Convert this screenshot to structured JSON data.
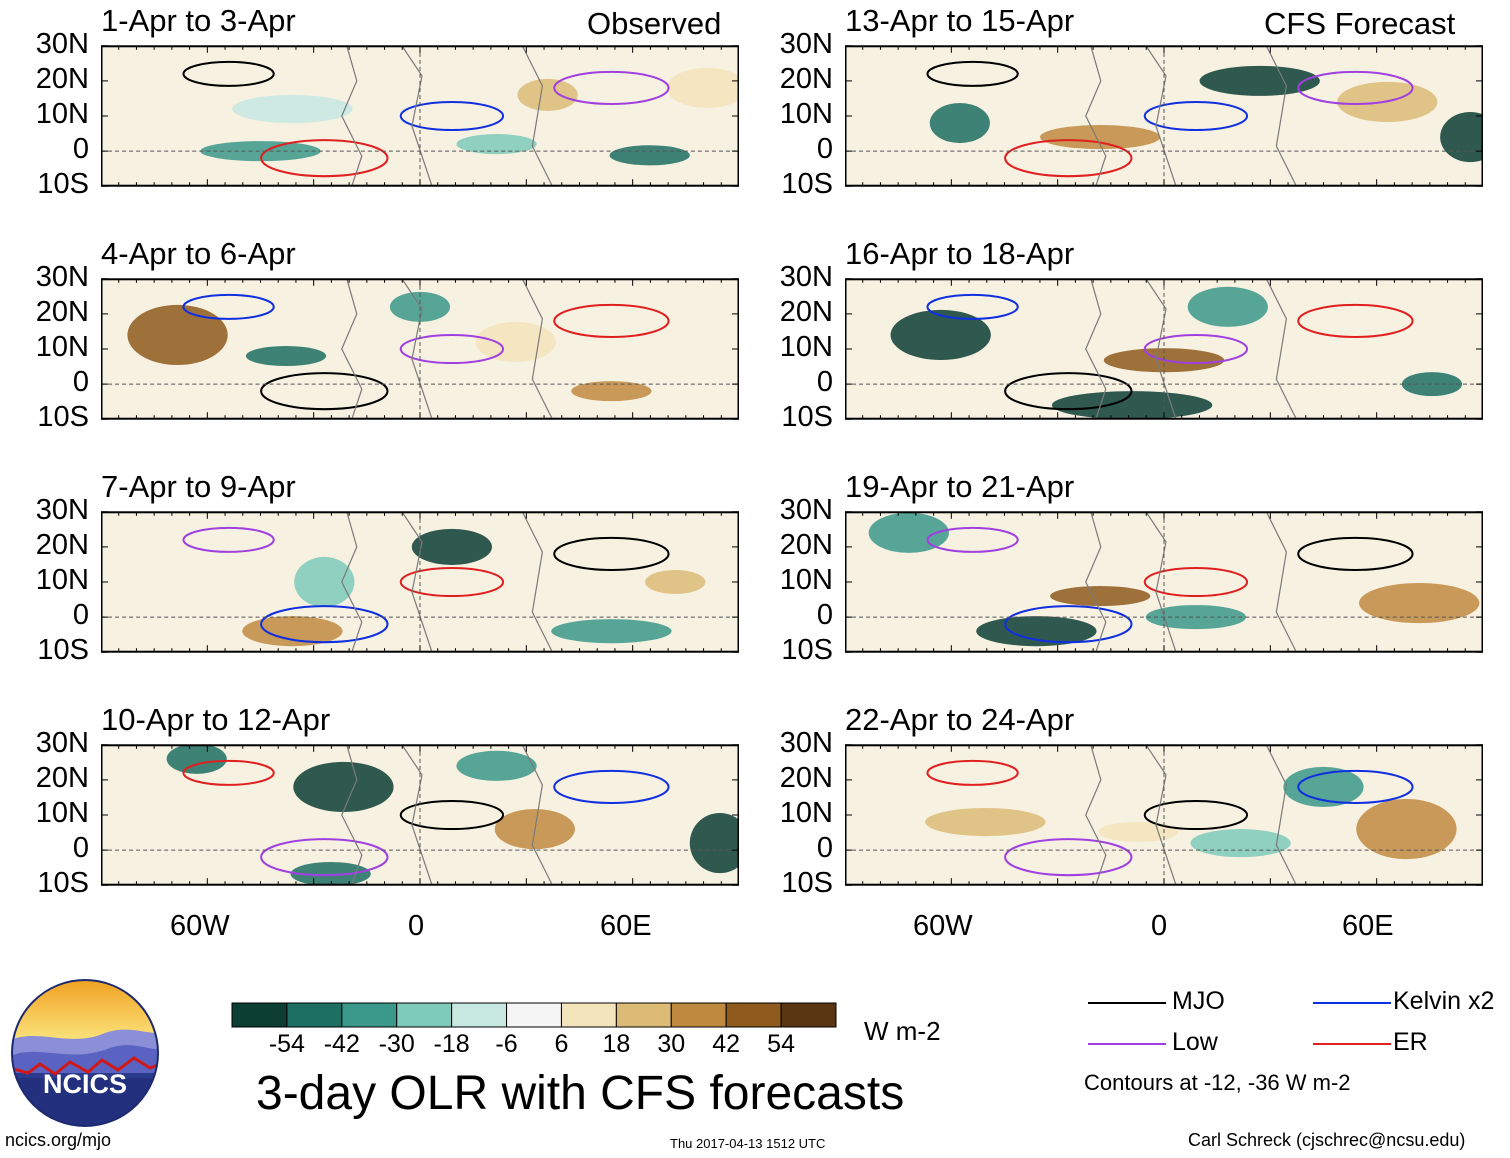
{
  "chart_data": {
    "type": "heatmap",
    "title": "3-day OLR with CFS forecasts",
    "units": "W m-2",
    "observed_label": "Observed",
    "forecast_label": "CFS Forecast",
    "lat_ticks": [
      "30N",
      "20N",
      "10N",
      "0",
      "10S"
    ],
    "lat_values": [
      30,
      20,
      10,
      0,
      -10
    ],
    "lon_ticks": [
      "60W",
      "0",
      "60E"
    ],
    "lon_values": [
      -60,
      0,
      60
    ],
    "lon_range": [
      -90,
      90
    ],
    "lat_range": [
      -10,
      30
    ],
    "colorbar": {
      "labels": [
        "-54",
        "-42",
        "-30",
        "-18",
        "-6",
        "6",
        "18",
        "30",
        "42",
        "54"
      ],
      "colors": [
        "#0c3e34",
        "#1d6f63",
        "#3a988a",
        "#7ecabb",
        "#c6e8e0",
        "#f5f5f5",
        "#f4e4bc",
        "#dcbb77",
        "#bf8a3f",
        "#8e5a1d",
        "#5a3511"
      ]
    },
    "panels": [
      {
        "label": "1-Apr to 3-Apr",
        "column": "observed"
      },
      {
        "label": "4-Apr to 6-Apr",
        "column": "observed"
      },
      {
        "label": "7-Apr to 9-Apr",
        "column": "observed"
      },
      {
        "label": "10-Apr to 12-Apr",
        "column": "observed"
      },
      {
        "label": "13-Apr to 15-Apr",
        "column": "forecast"
      },
      {
        "label": "16-Apr to 18-Apr",
        "column": "forecast"
      },
      {
        "label": "19-Apr to 21-Apr",
        "column": "forecast"
      },
      {
        "label": "22-Apr to 24-Apr",
        "column": "forecast"
      }
    ],
    "contours": {
      "note": "Contours at -12, -36 W m-2",
      "series": [
        {
          "name": "MJO",
          "color": "#000000"
        },
        {
          "name": "Kelvin x2",
          "color": "#1030e0"
        },
        {
          "name": "Low",
          "color": "#a040e0"
        },
        {
          "name": "ER",
          "color": "#e02020"
        }
      ]
    }
  },
  "logo": {
    "text": "NCICS"
  },
  "footer": {
    "url": "ncics.org/mjo",
    "timestamp": "Thu 2017-04-13 1512 UTC",
    "credit": "Carl Schreck (cjschrec@ncsu.edu)"
  }
}
